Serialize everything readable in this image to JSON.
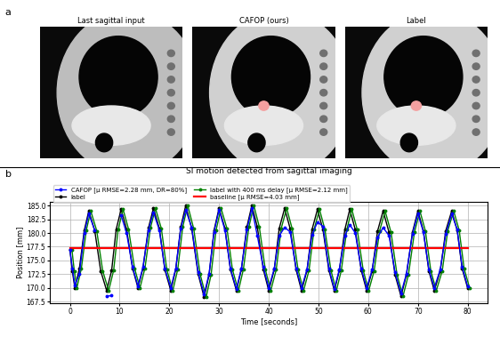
{
  "panel_a": {
    "label": "a",
    "image_titles": [
      "Last sagittal input",
      "CAFOP (ours)",
      "Label"
    ]
  },
  "panel_b": {
    "label": "b"
  },
  "chart_data": {
    "type": "line",
    "title": "SI motion detected from sagittal imaging",
    "x_label": "Time [seconds]",
    "y_label": "Position [mm]",
    "xlim": [
      -4,
      84
    ],
    "ylim": [
      167.2,
      185.6
    ],
    "xticks": [
      0,
      10,
      20,
      30,
      40,
      50,
      60,
      70,
      80
    ],
    "yticks": [
      167.5,
      {
        "value": 170,
        "label": "170.0"
      },
      172.5,
      {
        "value": 175,
        "label": "175.0"
      },
      177.5,
      {
        "value": 180,
        "label": "180.0"
      },
      182.5,
      {
        "value": 185,
        "label": "185.0"
      }
    ],
    "grid": true,
    "legend": "upper left",
    "series": [
      {
        "name": "CAFOP [μ RMSE=2.28 mm, DR=80%]",
        "color": "#0000ff",
        "marker": "o",
        "line_style": "solid",
        "x": [
          0,
          0.5,
          1.0,
          1.9,
          2.9,
          3.8,
          5.0,
          6.2,
          7.4,
          8.4,
          9.3,
          10.3,
          11.4,
          12.6,
          13.7,
          14.7,
          15.8,
          16.8,
          18.0,
          19.1,
          20.3,
          21.3,
          22.3,
          23.3,
          24.5,
          25.8,
          27.0,
          28.0,
          29.0,
          30.0,
          31.2,
          32.3,
          33.5,
          34.5,
          35.6,
          36.6,
          37.7,
          38.9,
          40.0,
          41.1,
          42.1,
          43.2,
          44.3,
          45.5,
          46.6,
          47.7,
          48.7,
          49.8,
          50.9,
          52.1,
          53.2,
          54.2,
          55.3,
          56.3,
          57.4,
          58.6,
          59.7,
          60.8,
          61.9,
          63.0,
          64.2,
          65.4,
          66.6,
          67.7,
          68.9,
          70.0,
          71.1,
          72.2,
          73.3,
          74.5,
          75.6,
          76.8,
          77.9,
          78.9,
          80.0
        ],
        "values": [
          177,
          173.5,
          170.5,
          172.5,
          180,
          183.5,
          180.5,
          null,
          168.5,
          168.6,
          null,
          183.2,
          180,
          173.8,
          170.3,
          173.8,
          180.5,
          183.8,
          180.5,
          173.5,
          170,
          173.6,
          180.8,
          184.2,
          181,
          172.8,
          168.8,
          172.6,
          180.2,
          184.2,
          180.5,
          173.5,
          169.8,
          173.6,
          180.6,
          184.5,
          179.5,
          173.8,
          170,
          173.5,
          179.5,
          181,
          180.2,
          173.6,
          170,
          173.4,
          179.6,
          182,
          181.2,
          173.5,
          169.8,
          173.4,
          179.5,
          181.5,
          180,
          173.5,
          170,
          173.3,
          179.2,
          181,
          179.5,
          172.8,
          169,
          172.6,
          179.8,
          183.5,
          180.2,
          173.4,
          170,
          173.4,
          179.8,
          183.5,
          180.6,
          173.8,
          170.3
        ]
      },
      {
        "name": "label",
        "color": "#000000",
        "marker": "o",
        "line_style": "solid",
        "x": [
          0,
          0.5,
          1.0,
          1.9,
          2.9,
          3.8,
          5.0,
          6.2,
          7.4,
          8.4,
          9.3,
          10.3,
          11.4,
          12.6,
          13.7,
          14.7,
          15.8,
          16.8,
          18.0,
          19.1,
          20.3,
          21.3,
          22.3,
          23.3,
          24.5,
          25.8,
          27.0,
          28.0,
          29.0,
          30.0,
          31.2,
          32.3,
          33.5,
          34.5,
          35.6,
          36.6,
          37.7,
          38.9,
          40.0,
          41.1,
          42.1,
          43.2,
          44.3,
          45.5,
          46.6,
          47.7,
          48.7,
          49.8,
          50.9,
          52.1,
          53.2,
          54.2,
          55.3,
          56.3,
          57.4,
          58.6,
          59.7,
          60.8,
          61.9,
          63.0,
          64.2,
          65.4,
          66.6,
          67.7,
          68.9,
          70.0,
          71.1,
          72.2,
          73.3,
          74.5,
          75.6,
          76.8,
          77.9,
          78.9,
          80.0
        ],
        "values": [
          177,
          173,
          170,
          173.5,
          180.5,
          184,
          180.4,
          173.1,
          169.5,
          173.2,
          180.6,
          184.3,
          180.7,
          173.6,
          170,
          173.6,
          180.9,
          184.5,
          180.8,
          173.3,
          169.5,
          173.4,
          181.1,
          185,
          180.8,
          172.5,
          168.3,
          172.4,
          180.5,
          184.5,
          180.8,
          173.3,
          169.5,
          173.4,
          181.1,
          185,
          181.1,
          173.4,
          169.5,
          173.3,
          180.8,
          184.5,
          180.8,
          173.3,
          169.5,
          173.2,
          180.6,
          184.3,
          180.6,
          173.2,
          169.5,
          173.2,
          180.6,
          184.3,
          180.6,
          173.2,
          169.5,
          173.1,
          180.4,
          184,
          180.1,
          172.4,
          168.5,
          172.4,
          180.1,
          184,
          180.4,
          173.1,
          169.5,
          173.1,
          180.4,
          184,
          180.5,
          173.5,
          170
        ]
      },
      {
        "name": "label with 400 ms delay [μ RMSE=2.12 mm]",
        "color": "#008000",
        "marker": "o",
        "line_style": "solid",
        "x": [
          0.4,
          0.9,
          1.4,
          2.3,
          3.3,
          4.2,
          5.4,
          6.6,
          7.8,
          8.8,
          9.7,
          10.7,
          11.8,
          13.0,
          14.1,
          15.1,
          16.2,
          17.2,
          18.4,
          19.5,
          20.7,
          21.7,
          22.7,
          23.7,
          24.9,
          26.2,
          27.4,
          28.4,
          29.4,
          30.4,
          31.6,
          32.7,
          33.9,
          34.9,
          36.0,
          37.0,
          38.1,
          39.3,
          40.4,
          41.5,
          42.5,
          43.6,
          44.7,
          45.9,
          47.0,
          48.1,
          49.1,
          50.2,
          51.3,
          52.5,
          53.6,
          54.6,
          55.7,
          56.7,
          57.8,
          59.0,
          60.1,
          61.2,
          62.3,
          63.4,
          64.6,
          65.8,
          67.0,
          68.1,
          69.3,
          70.4,
          71.5,
          72.6,
          73.7,
          74.9,
          76.0,
          77.2,
          78.3,
          79.3,
          80.4
        ],
        "values": [
          177,
          173,
          170,
          173.5,
          180.5,
          184,
          180.4,
          173.1,
          169.5,
          173.2,
          180.6,
          184.3,
          180.7,
          173.6,
          170,
          173.6,
          180.9,
          184.5,
          180.8,
          173.3,
          169.5,
          173.4,
          181.1,
          185,
          180.8,
          172.5,
          168.3,
          172.4,
          180.5,
          184.5,
          180.8,
          173.3,
          169.5,
          173.4,
          181.1,
          185,
          181.1,
          173.4,
          169.5,
          173.3,
          180.8,
          184.5,
          180.8,
          173.3,
          169.5,
          173.2,
          180.6,
          184.3,
          180.6,
          173.2,
          169.5,
          173.2,
          180.6,
          184.3,
          180.6,
          173.2,
          169.5,
          173.1,
          180.4,
          184,
          180.1,
          172.4,
          168.5,
          172.4,
          180.1,
          184,
          180.4,
          173.1,
          169.5,
          173.1,
          180.4,
          184,
          180.5,
          173.5,
          170
        ]
      },
      {
        "name": "baseline [μ RMSE=4.03 mm]",
        "color": "#ff0000",
        "marker": "none",
        "line_style": "solid",
        "x": [
          0,
          80
        ],
        "values": [
          177.3,
          177.3
        ]
      }
    ]
  }
}
